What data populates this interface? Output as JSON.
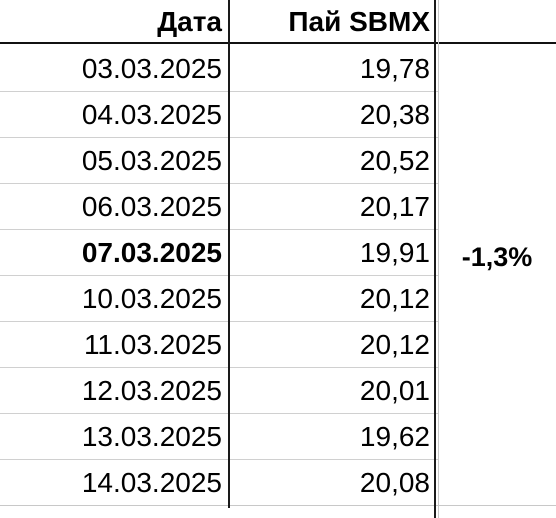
{
  "header": {
    "date_label": "Дата",
    "value_label": "Пай SBMX"
  },
  "rows": [
    {
      "date": "03.03.2025",
      "value": "19,78"
    },
    {
      "date": "04.03.2025",
      "value": "20,38"
    },
    {
      "date": "05.03.2025",
      "value": "20,52"
    },
    {
      "date": "06.03.2025",
      "value": "20,17"
    },
    {
      "date": "07.03.2025",
      "value": "19,91",
      "change": "-1,3%"
    },
    {
      "date": "10.03.2025",
      "value": "20,12"
    },
    {
      "date": "11.03.2025",
      "value": "20,12"
    },
    {
      "date": "12.03.2025",
      "value": "20,01"
    },
    {
      "date": "13.03.2025",
      "value": "19,62"
    },
    {
      "date": "14.03.2025",
      "value": "20,08"
    }
  ]
}
